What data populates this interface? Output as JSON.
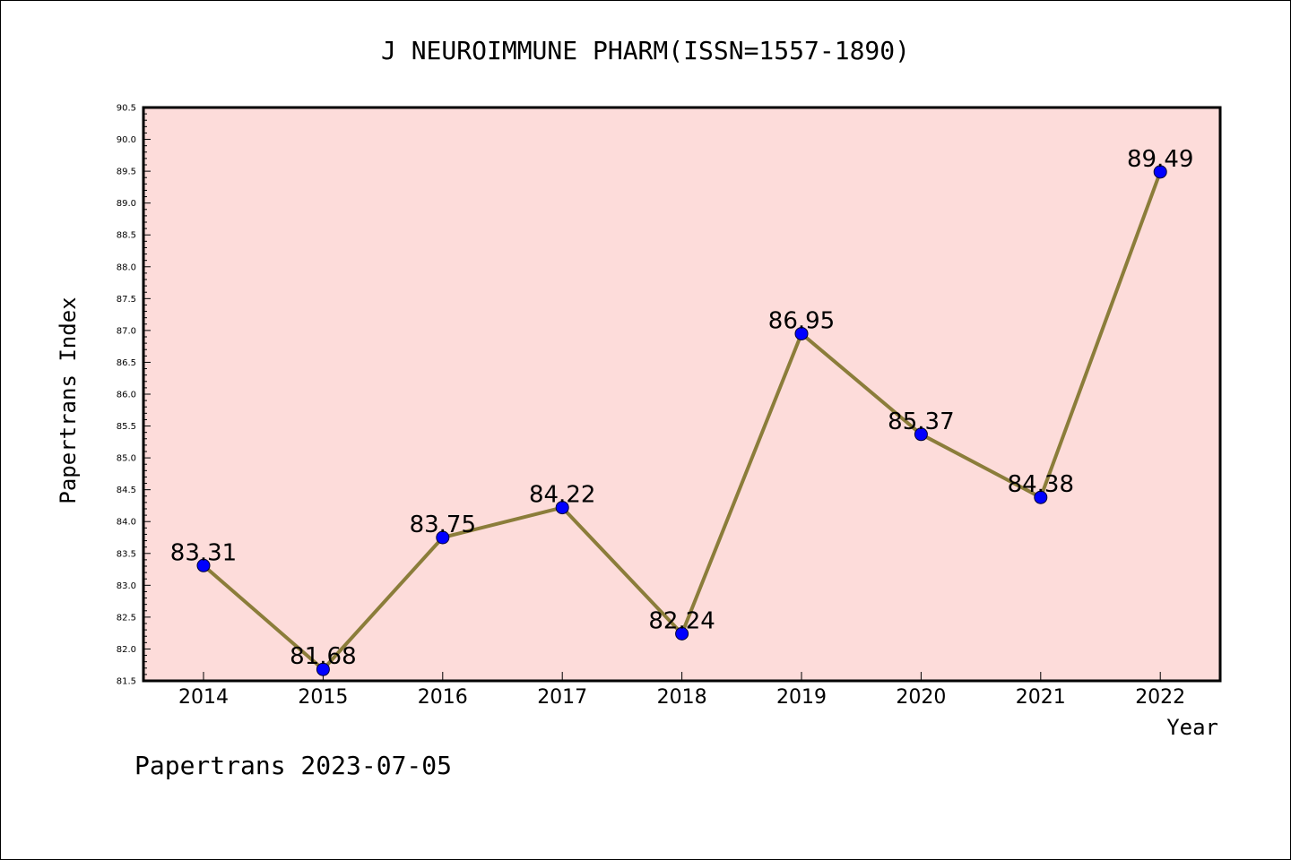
{
  "chart_data": {
    "type": "line",
    "title": "J NEUROIMMUNE PHARM(ISSN=1557-1890)",
    "xlabel": "Year",
    "ylabel": "Papertrans Index",
    "categories": [
      "2014",
      "2015",
      "2016",
      "2017",
      "2018",
      "2019",
      "2020",
      "2021",
      "2022"
    ],
    "series": [
      {
        "values": [
          83.31,
          81.68,
          83.75,
          84.22,
          82.24,
          86.95,
          85.37,
          84.38,
          89.49
        ],
        "labels": [
          "83.31",
          "81.68",
          "83.75",
          "84.22",
          "82.24",
          "86.95",
          "85.37",
          "84.38",
          "89.49"
        ]
      }
    ],
    "ylim": [
      81.5,
      90.5
    ],
    "yticks": [
      "81.5",
      "82.0",
      "82.5",
      "83.0",
      "83.5",
      "84.0",
      "84.5",
      "85.0",
      "85.5",
      "86.0",
      "86.5",
      "87.0",
      "87.5",
      "88.0",
      "88.5",
      "89.0",
      "89.5",
      "90.0",
      "90.5"
    ],
    "grid": false,
    "legend": "none",
    "colors": {
      "plot_background": "#FDDCDA",
      "line": "#8B7D3A",
      "marker": "#0000FF"
    }
  },
  "footer": "Papertrans 2023-07-05"
}
